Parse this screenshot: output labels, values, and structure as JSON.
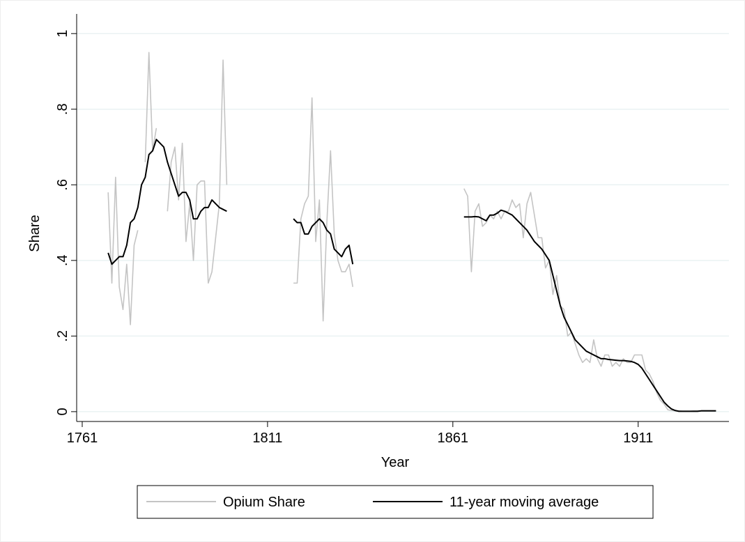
{
  "chart_data": {
    "type": "line",
    "xlabel": "Year",
    "ylabel": "Share",
    "x": [
      1768,
      1769,
      1770,
      1771,
      1772,
      1773,
      1774,
      1775,
      1776,
      1777,
      1778,
      1779,
      1780,
      1781,
      1782,
      1783,
      1784,
      1785,
      1786,
      1787,
      1788,
      1789,
      1790,
      1791,
      1792,
      1793,
      1794,
      1795,
      1796,
      1797,
      1798,
      1799,
      1800,
      1809,
      1818,
      1819,
      1820,
      1821,
      1822,
      1823,
      1824,
      1825,
      1826,
      1827,
      1828,
      1829,
      1830,
      1831,
      1832,
      1833,
      1834,
      1848,
      1864,
      1865,
      1866,
      1867,
      1868,
      1869,
      1870,
      1871,
      1872,
      1873,
      1874,
      1875,
      1876,
      1877,
      1878,
      1879,
      1880,
      1881,
      1882,
      1883,
      1884,
      1885,
      1886,
      1887,
      1888,
      1889,
      1890,
      1891,
      1892,
      1893,
      1894,
      1895,
      1896,
      1897,
      1898,
      1899,
      1900,
      1901,
      1902,
      1903,
      1904,
      1905,
      1906,
      1907,
      1908,
      1909,
      1910,
      1911,
      1912,
      1913,
      1914,
      1915,
      1916,
      1917,
      1918,
      1919,
      1920,
      1921,
      1922,
      1923,
      1924,
      1925,
      1926,
      1927,
      1928,
      1929,
      1930,
      1931,
      1932
    ],
    "series": [
      {
        "name": "Opium Share",
        "color": "#c4c4c4",
        "values": [
          0.58,
          0.34,
          0.62,
          0.33,
          0.27,
          0.39,
          0.23,
          0.44,
          0.48,
          null,
          0.66,
          0.95,
          0.69,
          0.75,
          null,
          null,
          0.53,
          0.66,
          0.7,
          0.56,
          0.71,
          0.45,
          0.55,
          0.4,
          0.6,
          0.61,
          0.61,
          0.34,
          0.37,
          0.46,
          0.55,
          0.93,
          0.6,
          null,
          0.34,
          0.34,
          0.51,
          0.55,
          0.57,
          0.83,
          0.45,
          0.56,
          0.24,
          0.5,
          0.69,
          0.47,
          0.4,
          0.37,
          0.37,
          0.39,
          0.33,
          null,
          0.59,
          0.57,
          0.37,
          0.53,
          0.55,
          0.49,
          0.5,
          0.52,
          0.51,
          0.53,
          0.51,
          0.53,
          0.53,
          0.56,
          0.54,
          0.55,
          0.46,
          0.55,
          0.58,
          0.52,
          0.46,
          0.46,
          0.38,
          0.4,
          0.31,
          0.36,
          0.28,
          0.27,
          0.2,
          0.21,
          0.18,
          0.15,
          0.13,
          0.14,
          0.13,
          0.19,
          0.14,
          0.12,
          0.15,
          0.15,
          0.12,
          0.13,
          0.12,
          0.14,
          0.13,
          0.13,
          0.15,
          0.15,
          0.15,
          0.11,
          0.1,
          0.08,
          0.05,
          0.03,
          0.02,
          0.005,
          0.003,
          0.002,
          0.002,
          0.001,
          0.001,
          0.001,
          0.002,
          0.002,
          0.003,
          0.003,
          0.003,
          0.003,
          0.003
        ]
      },
      {
        "name": "11-year moving average",
        "color": "#000000",
        "values": [
          0.42,
          0.39,
          0.4,
          0.41,
          0.41,
          0.44,
          0.5,
          0.51,
          0.54,
          0.6,
          0.62,
          0.68,
          0.69,
          0.72,
          0.71,
          0.7,
          0.66,
          0.63,
          0.6,
          0.57,
          0.58,
          0.58,
          0.56,
          0.51,
          0.51,
          0.53,
          0.54,
          0.54,
          0.56,
          0.55,
          0.54,
          0.535,
          0.53,
          null,
          0.51,
          0.5,
          0.5,
          0.47,
          0.47,
          0.49,
          0.5,
          0.51,
          0.5,
          0.48,
          0.47,
          0.43,
          0.42,
          0.41,
          0.43,
          0.44,
          0.39,
          null,
          0.515,
          0.515,
          0.515,
          0.516,
          0.515,
          0.51,
          0.505,
          0.52,
          0.52,
          0.525,
          0.533,
          0.53,
          0.525,
          0.52,
          0.51,
          0.5,
          0.49,
          0.48,
          0.465,
          0.45,
          0.44,
          0.43,
          0.415,
          0.4,
          0.36,
          0.32,
          0.28,
          0.25,
          0.23,
          0.21,
          0.19,
          0.18,
          0.17,
          0.16,
          0.155,
          0.15,
          0.145,
          0.14,
          0.14,
          0.138,
          0.137,
          0.136,
          0.135,
          0.135,
          0.134,
          0.133,
          0.13,
          0.125,
          0.115,
          0.1,
          0.085,
          0.07,
          0.055,
          0.04,
          0.025,
          0.015,
          0.007,
          0.003,
          0.001,
          0.001,
          0.001,
          0.001,
          0.001,
          0.001,
          0.002,
          0.002,
          0.002,
          0.002,
          0.002
        ]
      }
    ],
    "xlim": [
      1759.5,
      1935.5
    ],
    "xticks": [
      1761,
      1811,
      1861,
      1911
    ],
    "ylim": [
      -0.026,
      1.052
    ],
    "yticks": [
      0,
      {
        "value": 0.2,
        "label": ".2"
      },
      {
        "value": 0.4,
        "label": ".4"
      },
      {
        "value": 0.6,
        "label": ".6"
      },
      {
        "value": 0.8,
        "label": ".8"
      },
      1
    ],
    "grid": true,
    "legend": "bottom"
  }
}
